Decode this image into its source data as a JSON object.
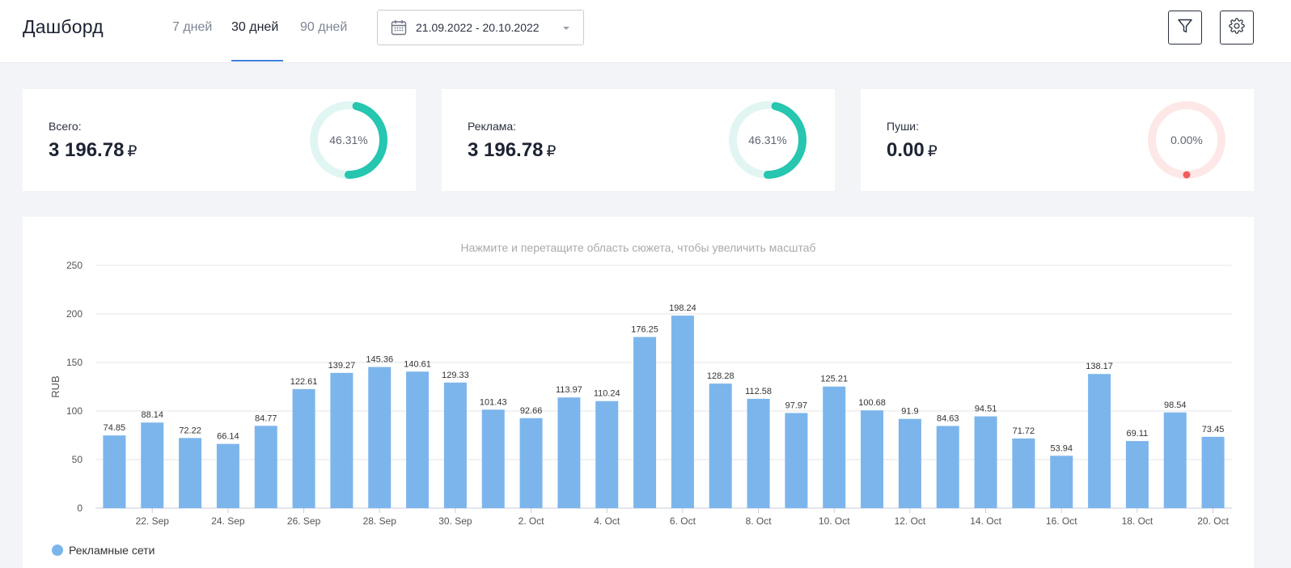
{
  "header": {
    "title": "Дашборд",
    "tabs": [
      {
        "label": "7 дней",
        "active": false
      },
      {
        "label": "30 дней",
        "active": true
      },
      {
        "label": "90 дней",
        "active": false
      }
    ],
    "date_range": "21.09.2022 - 20.10.2022",
    "icons": {
      "calendar": "calendar-icon",
      "filter": "filter-icon",
      "settings": "gear-icon"
    }
  },
  "cards": [
    {
      "label": "Всего:",
      "value": "3 196.78",
      "currency": "₽",
      "percent": "46.31%",
      "fraction": 0.4631,
      "color": "#26c6b0",
      "track": "#e1f6f3"
    },
    {
      "label": "Реклама:",
      "value": "3 196.78",
      "currency": "₽",
      "percent": "46.31%",
      "fraction": 0.4631,
      "color": "#26c6b0",
      "track": "#e1f6f3"
    },
    {
      "label": "Пуши:",
      "value": "0.00",
      "currency": "₽",
      "percent": "0.00%",
      "fraction": 0,
      "color": "#f25c5c",
      "track": "#fde7e7"
    }
  ],
  "chart_data": {
    "type": "bar",
    "hint": "Нажмите и перетащите область сюжета, чтобы увеличить масштаб",
    "ylabel": "RUB",
    "ylim": [
      0,
      250
    ],
    "yticks": [
      0,
      50,
      100,
      150,
      200,
      250
    ],
    "grid": true,
    "legend_position": "bottom-left",
    "bar_color": "#7cb5ec",
    "x_tick_labels": [
      "22. Sep",
      "24. Sep",
      "26. Sep",
      "28. Sep",
      "30. Sep",
      "2. Oct",
      "4. Oct",
      "6. Oct",
      "8. Oct",
      "10. Oct",
      "12. Oct",
      "14. Oct",
      "16. Oct",
      "18. Oct",
      "20. Oct"
    ],
    "x_tick_bar_indices": [
      1,
      3,
      5,
      7,
      9,
      11,
      13,
      15,
      17,
      19,
      21,
      23,
      25,
      27,
      29
    ],
    "series": [
      {
        "name": "Рекламные сети",
        "values": [
          74.85,
          88.14,
          72.22,
          66.14,
          84.77,
          122.61,
          139.27,
          145.36,
          140.61,
          129.33,
          101.43,
          92.66,
          113.97,
          110.24,
          176.25,
          198.24,
          128.28,
          112.58,
          97.97,
          125.21,
          100.68,
          91.9,
          84.63,
          94.51,
          71.72,
          53.94,
          138.17,
          69.11,
          98.54,
          73.45
        ]
      }
    ]
  }
}
